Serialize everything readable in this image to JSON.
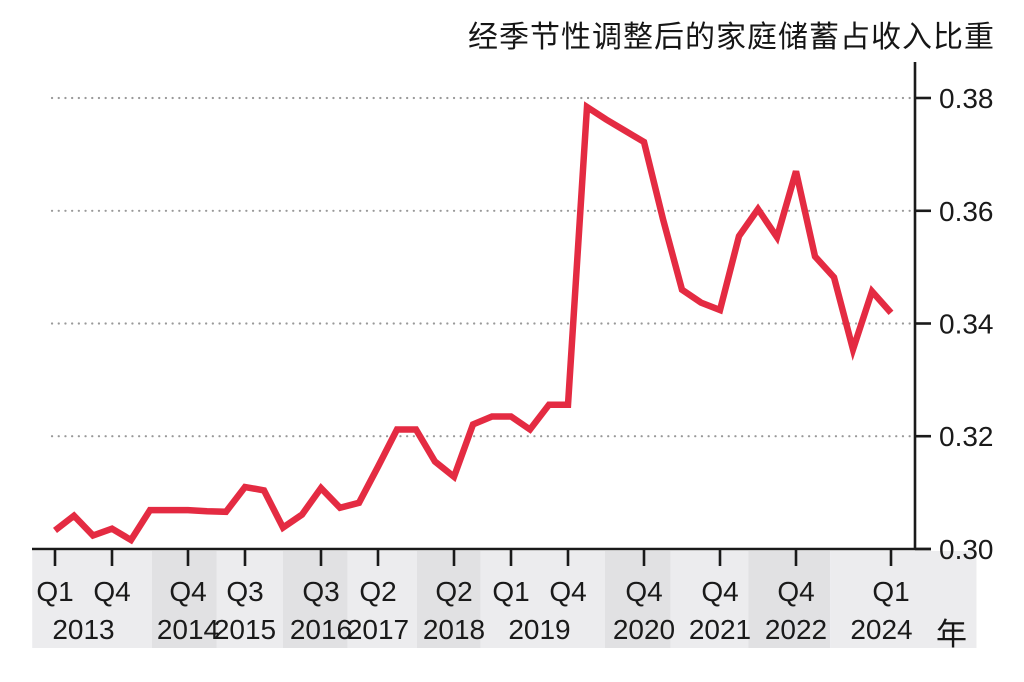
{
  "chart_data": {
    "type": "line",
    "title": "经季节性调整后的家庭储蓄占收入比重",
    "x_axis_unit": "年",
    "xlabel": "",
    "ylabel": "",
    "grid": "dotted horizontal gridlines at y ticks",
    "legend_position": "none",
    "line_color": "#e42b42",
    "axis_color": "#1a1a1a",
    "gridline_color": "#999999",
    "band_colors": {
      "light": "#ececee",
      "dark": "#e1e1e3"
    },
    "ylim": [
      0.3,
      0.3865
    ],
    "x": [
      "2013Q1",
      "2013Q2",
      "2013Q3",
      "2013Q4",
      "2014Q1",
      "2014Q2",
      "2014Q3",
      "2014Q4",
      "2015Q1",
      "2015Q2",
      "2015Q3",
      "2015Q4",
      "2016Q1",
      "2016Q2",
      "2016Q3",
      "2016Q4",
      "2017Q1",
      "2017Q2",
      "2017Q3",
      "2017Q4",
      "2018Q1",
      "2018Q2",
      "2018Q3",
      "2018Q4",
      "2019Q1",
      "2019Q2",
      "2019Q3",
      "2019Q4",
      "2020Q1",
      "2020Q2",
      "2020Q3",
      "2020Q4",
      "2021Q1",
      "2021Q2",
      "2021Q3",
      "2021Q4",
      "2022Q1",
      "2022Q2",
      "2022Q3",
      "2022Q4",
      "2023Q1",
      "2023Q2",
      "2023Q3",
      "2023Q4",
      "2024Q1"
    ],
    "values": [
      0.3033,
      0.3059,
      0.3024,
      0.3036,
      0.3016,
      0.3069,
      0.3069,
      0.3069,
      0.3067,
      0.3066,
      0.311,
      0.3104,
      0.3038,
      0.3061,
      0.3108,
      0.3073,
      0.3082,
      0.3146,
      0.3212,
      0.3212,
      0.3155,
      0.3128,
      0.3221,
      0.3235,
      0.3235,
      0.3212,
      0.3256,
      0.3256,
      0.3784,
      0.3762,
      0.3742,
      0.3722,
      0.3585,
      0.346,
      0.3437,
      0.3424,
      0.3555,
      0.3603,
      0.3553,
      0.367,
      0.3519,
      0.3482,
      0.3354,
      0.3457,
      0.3419
    ],
    "y_ticks": [
      {
        "value": 0.3,
        "label": "0.30"
      },
      {
        "value": 0.32,
        "label": "0.32"
      },
      {
        "value": 0.34,
        "label": "0.34"
      },
      {
        "value": 0.36,
        "label": "0.36"
      },
      {
        "value": 0.38,
        "label": "0.38"
      }
    ],
    "gridline_values": [
      0.32,
      0.34,
      0.36,
      0.38
    ],
    "x_ticks": [
      {
        "q": 0,
        "label": "Q1"
      },
      {
        "q": 3,
        "label": "Q4"
      },
      {
        "q": 7,
        "label": "Q4"
      },
      {
        "q": 10,
        "label": "Q3"
      },
      {
        "q": 14,
        "label": "Q3"
      },
      {
        "q": 17,
        "label": "Q2"
      },
      {
        "q": 21,
        "label": "Q2"
      },
      {
        "q": 24,
        "label": "Q1"
      },
      {
        "q": 27,
        "label": "Q4"
      },
      {
        "q": 31,
        "label": "Q4"
      },
      {
        "q": 35,
        "label": "Q4"
      },
      {
        "q": 39,
        "label": "Q4"
      },
      {
        "q": 44,
        "label": "Q1"
      }
    ],
    "year_labels": [
      {
        "q": 1.5,
        "label": "2013"
      },
      {
        "q": 7,
        "label": "2014"
      },
      {
        "q": 10,
        "label": "2015"
      },
      {
        "q": 14,
        "label": "2016"
      },
      {
        "q": 17,
        "label": "2017"
      },
      {
        "q": 21,
        "label": "2018"
      },
      {
        "q": 25.5,
        "label": "2019"
      },
      {
        "q": 31,
        "label": "2020"
      },
      {
        "q": 35,
        "label": "2021"
      },
      {
        "q": 39,
        "label": "2022"
      },
      {
        "q": 43.5,
        "label": "2024"
      }
    ],
    "bands": [
      {
        "q0": -1.2,
        "q1": 5.1,
        "shade": "light"
      },
      {
        "q0": 5.1,
        "q1": 8.5,
        "shade": "dark"
      },
      {
        "q0": 8.5,
        "q1": 12.0,
        "shade": "light"
      },
      {
        "q0": 12.0,
        "q1": 15.4,
        "shade": "dark"
      },
      {
        "q0": 15.4,
        "q1": 19.05,
        "shade": "light"
      },
      {
        "q0": 19.05,
        "q1": 22.4,
        "shade": "dark"
      },
      {
        "q0": 22.4,
        "q1": 28.95,
        "shade": "light"
      },
      {
        "q0": 28.95,
        "q1": 32.4,
        "shade": "dark"
      },
      {
        "q0": 32.4,
        "q1": 36.5,
        "shade": "light"
      },
      {
        "q0": 36.5,
        "q1": 40.8,
        "shade": "dark"
      },
      {
        "q0": 40.8,
        "q1": 48.5,
        "shade": "light"
      }
    ]
  }
}
